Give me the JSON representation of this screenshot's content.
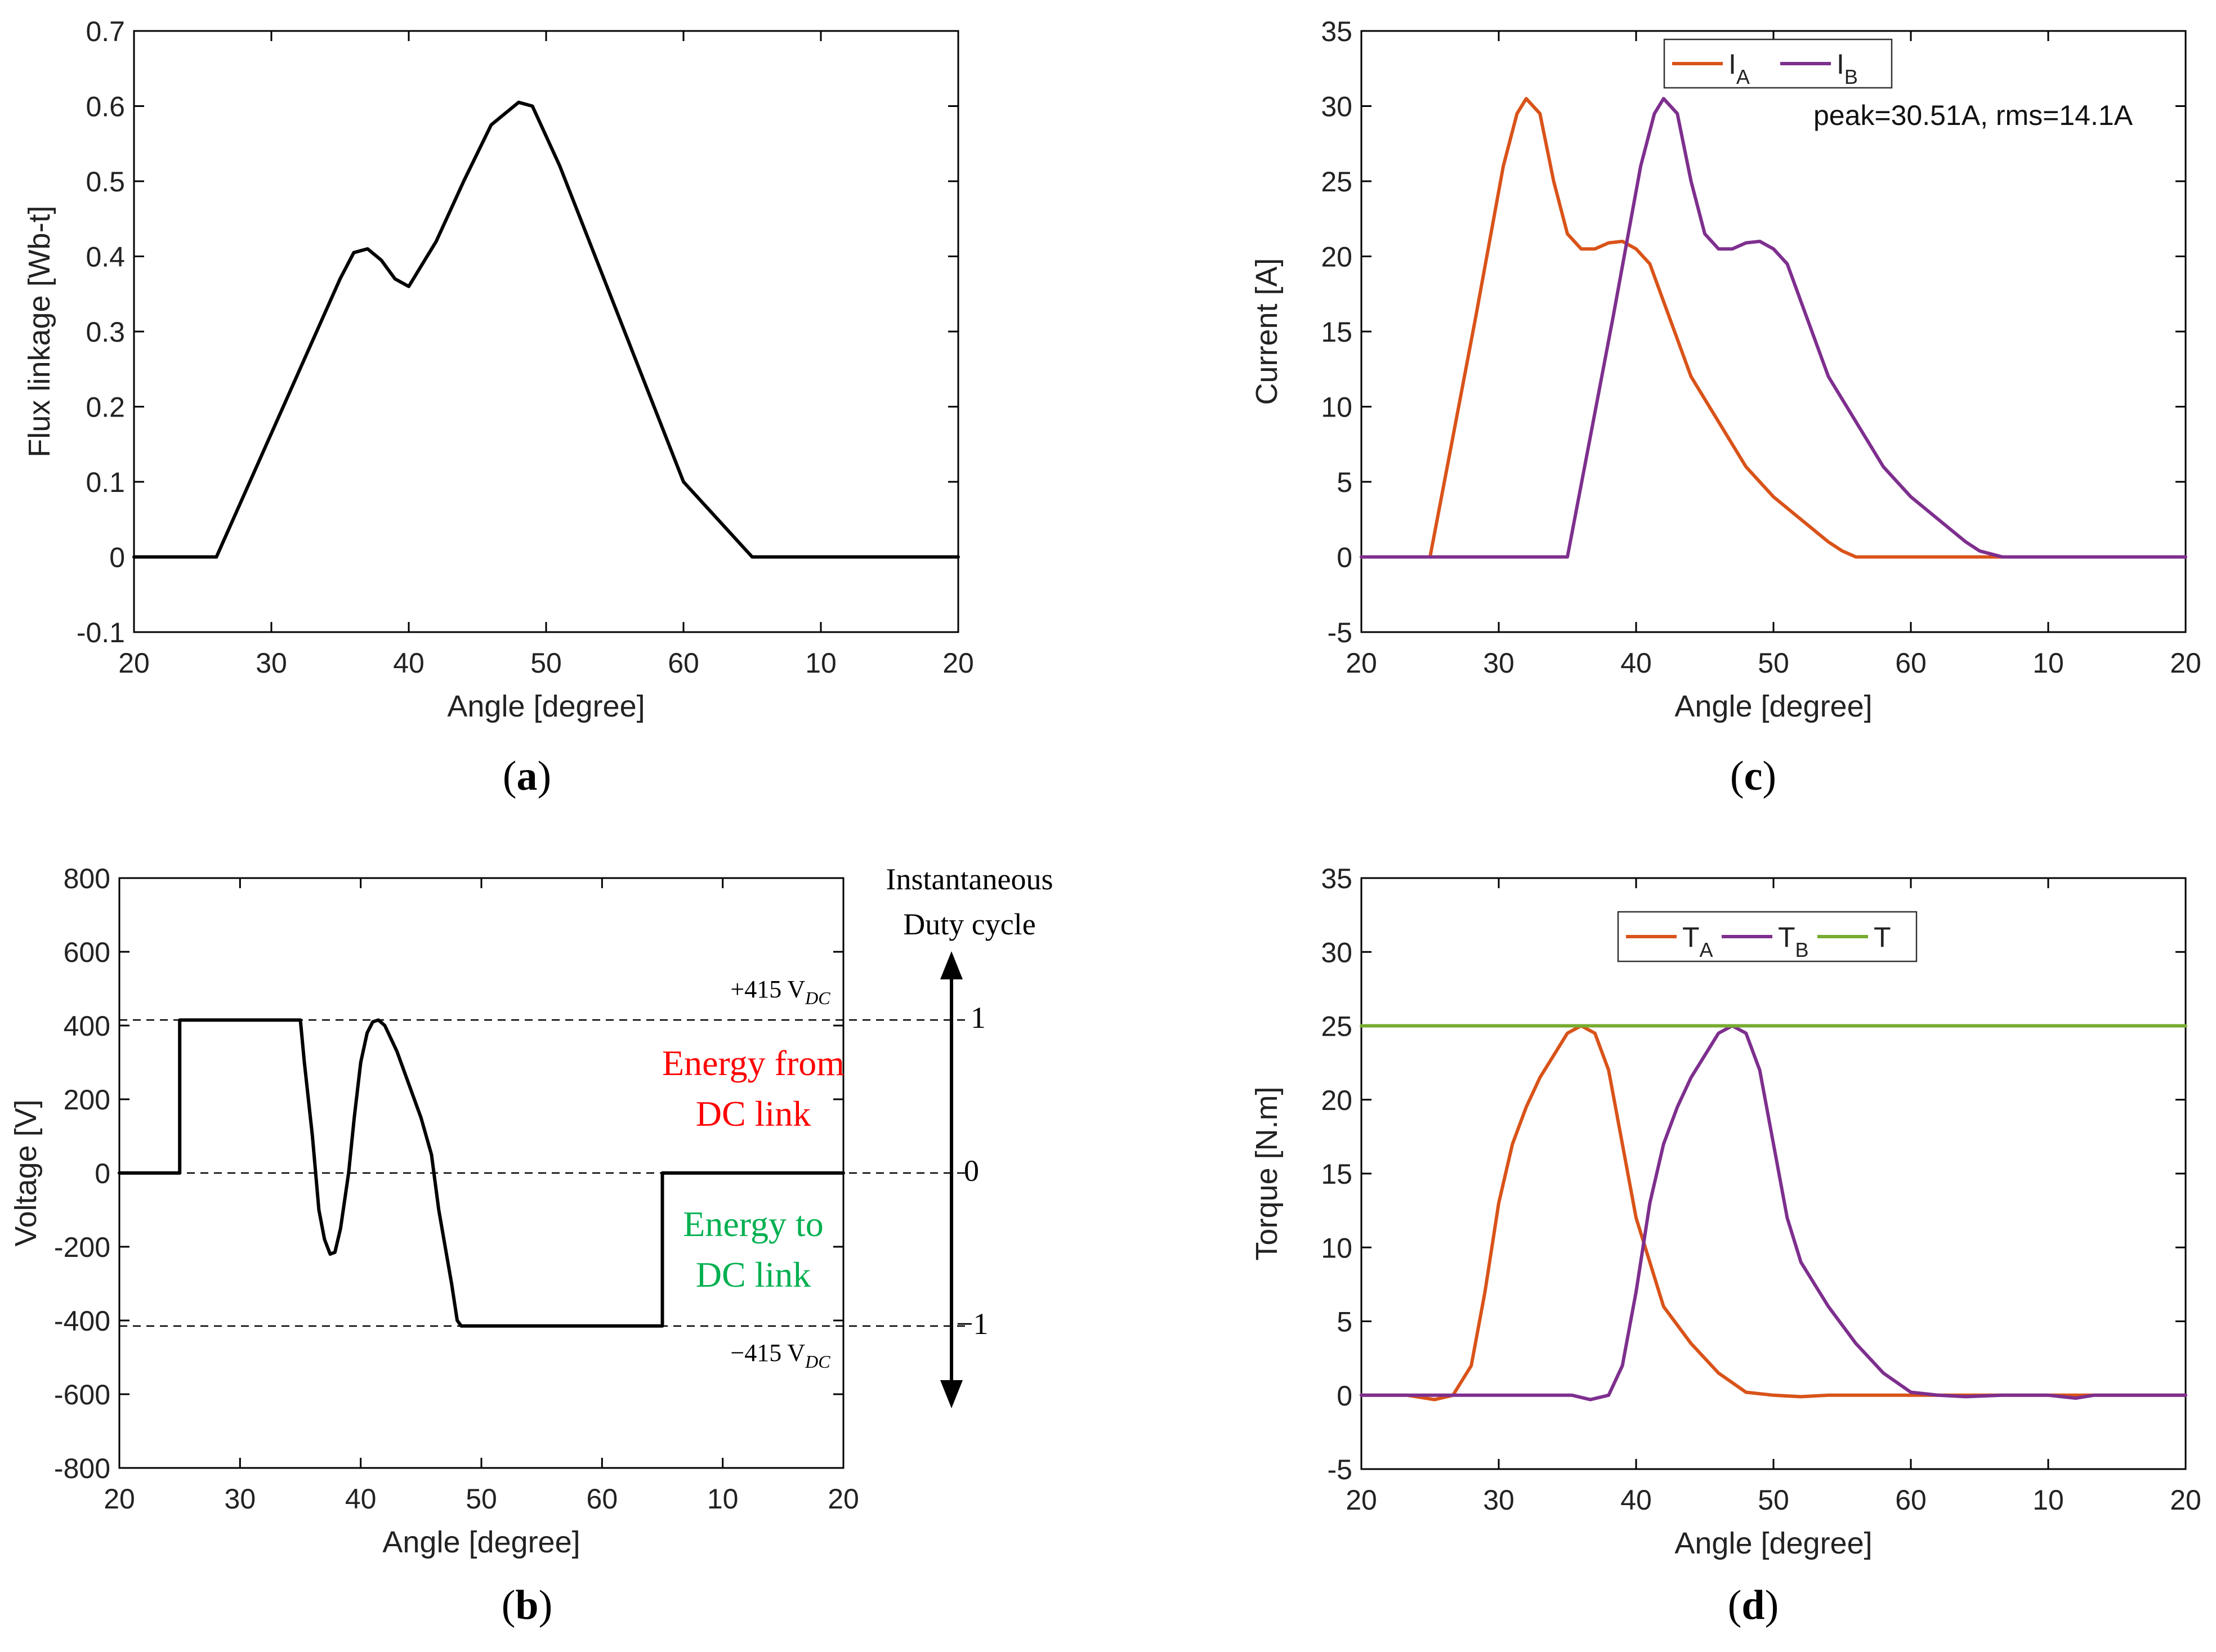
{
  "colors": {
    "black": "#000000",
    "orange": "#D95319",
    "purple": "#7E2F8E",
    "green": "#77AC30",
    "red": "#FF0000",
    "energy_green": "#00B050"
  },
  "chart_data": [
    {
      "id": "a",
      "type": "line",
      "panel_label": "a",
      "xlabel": "Angle [degree]",
      "ylabel": "Flux linkage [Wb-t]",
      "xlim": [
        0,
        90
      ],
      "x_tick_labels": [
        "20",
        "30",
        "40",
        "50",
        "60",
        "10",
        "20"
      ],
      "ylim": [
        -0.1,
        0.7
      ],
      "y_ticks": [
        -0.1,
        0,
        0.1,
        0.2,
        0.3,
        0.4,
        0.5,
        0.6,
        0.7
      ],
      "y_tick_labels": [
        "-0.1",
        "0",
        "0.1",
        "0.2",
        "0.3",
        "0.4",
        "0.5",
        "0.6",
        "0.7"
      ],
      "series": [
        {
          "name": "Flux linkage",
          "color": "#000000",
          "x": [
            0,
            7.5,
            9,
            22.5,
            24,
            25.5,
            27,
            28.5,
            30,
            33,
            36,
            39,
            42,
            43.5,
            45,
            46.5,
            60,
            67.5,
            90
          ],
          "y": [
            0,
            0,
            0,
            0.37,
            0.405,
            0.41,
            0.395,
            0.37,
            0.36,
            0.42,
            0.5,
            0.575,
            0.605,
            0.6,
            0.56,
            0.52,
            0.1,
            0,
            0
          ]
        }
      ]
    },
    {
      "id": "b",
      "type": "line",
      "panel_label": "b",
      "xlabel": "Angle [degree]",
      "ylabel": "Voltage [V]",
      "xlim": [
        0,
        90
      ],
      "x_tick_labels": [
        "20",
        "30",
        "40",
        "50",
        "60",
        "10",
        "20"
      ],
      "ylim": [
        -800,
        800
      ],
      "y_ticks": [
        -800,
        -600,
        -400,
        -200,
        0,
        200,
        400,
        600,
        800
      ],
      "y_tick_labels": [
        "-800",
        "-600",
        "-400",
        "-200",
        "0",
        "200",
        "400",
        "600",
        "800"
      ],
      "reference_lines": [
        415,
        0,
        -415
      ],
      "labels": {
        "plus_dc": "+415 V",
        "minus_dc": "−415 V",
        "dc_sub": "DC",
        "duty_title_1": "Instantaneous",
        "duty_title_2": "Duty cycle",
        "duty_1": "1",
        "duty_0": "0",
        "duty_m1": "−1",
        "energy_from_1": "Energy from",
        "energy_from_2": "DC link",
        "energy_to_1": "Energy to",
        "energy_to_2": "DC link"
      },
      "series": [
        {
          "name": "Voltage",
          "color": "#000000",
          "x": [
            0,
            7.5,
            7.5,
            22.5,
            23,
            24,
            24.8,
            25.5,
            26.2,
            26.8,
            27.5,
            28.5,
            29.2,
            30,
            30.8,
            31.5,
            32.2,
            33,
            34.5,
            36,
            37.5,
            38.8,
            39.7,
            40.5,
            41.3,
            42,
            42.5,
            43,
            43.5,
            45,
            45,
            67.5,
            67.5,
            90
          ],
          "y": [
            0,
            0,
            415,
            415,
            300,
            100,
            -100,
            -180,
            -220,
            -215,
            -150,
            0,
            150,
            300,
            380,
            410,
            415,
            400,
            330,
            240,
            150,
            50,
            -100,
            -200,
            -300,
            -400,
            -415,
            -415,
            -415,
            -415,
            -415,
            -415,
            0,
            0
          ]
        },
        {
          "name": "Zero line (before)",
          "color": "#000000",
          "x": [
            0,
            7.5
          ],
          "y": [
            0,
            0
          ]
        }
      ]
    },
    {
      "id": "c",
      "type": "line",
      "panel_label": "c",
      "xlabel": "Angle [degree]",
      "ylabel": "Current [A]",
      "xlim": [
        0,
        90
      ],
      "x_tick_labels": [
        "20",
        "30",
        "40",
        "50",
        "60",
        "10",
        "20"
      ],
      "ylim": [
        -5,
        35
      ],
      "y_ticks": [
        -5,
        0,
        5,
        10,
        15,
        20,
        25,
        30,
        35
      ],
      "y_tick_labels": [
        "-5",
        "0",
        "5",
        "10",
        "15",
        "20",
        "25",
        "30",
        "35"
      ],
      "legend": [
        {
          "label": "I",
          "sub": "A",
          "color": "#D95319"
        },
        {
          "label": "I",
          "sub": "B",
          "color": "#7E2F8E"
        }
      ],
      "annotation": "peak=30.51A, rms=14.1A",
      "series": [
        {
          "name": "IA",
          "color": "#D95319",
          "x": [
            0,
            7.5,
            10,
            12.5,
            14,
            15.5,
            17,
            18,
            19.5,
            21,
            22.5,
            24,
            25.5,
            27,
            28.5,
            30,
            31.5,
            33,
            36,
            39,
            42,
            45,
            48,
            51,
            52.5,
            54,
            56,
            60,
            67.5,
            90
          ],
          "y": [
            0,
            0,
            8,
            16,
            21,
            26,
            29.5,
            30.5,
            29.5,
            25,
            21.5,
            20.5,
            20.5,
            20.9,
            21,
            20.5,
            19.5,
            17,
            12,
            9,
            6,
            4,
            2.5,
            1,
            0.4,
            0,
            0,
            0,
            0,
            0
          ]
        },
        {
          "name": "IB",
          "color": "#7E2F8E",
          "x": [
            0,
            22.5,
            25,
            27.5,
            29,
            30.5,
            32,
            33,
            34.5,
            36,
            37.5,
            39,
            40.5,
            42,
            43.5,
            45,
            46.5,
            48,
            51,
            54,
            57,
            60,
            63,
            66,
            67.5,
            70,
            75,
            80,
            85,
            90
          ],
          "y": [
            0,
            0,
            8,
            16,
            21,
            26,
            29.5,
            30.5,
            29.5,
            25,
            21.5,
            20.5,
            20.5,
            20.9,
            21,
            20.5,
            19.5,
            17,
            12,
            9,
            6,
            4,
            2.5,
            1,
            0.4,
            0,
            0,
            0,
            0,
            0
          ]
        }
      ]
    },
    {
      "id": "d",
      "type": "line",
      "panel_label": "d",
      "xlabel": "Angle [degree]",
      "ylabel": "Torque [N.m]",
      "xlim": [
        0,
        90
      ],
      "x_tick_labels": [
        "20",
        "30",
        "40",
        "50",
        "60",
        "10",
        "20"
      ],
      "ylim": [
        -5,
        35
      ],
      "y_ticks": [
        -5,
        0,
        5,
        10,
        15,
        20,
        25,
        30,
        35
      ],
      "y_tick_labels": [
        "-5",
        "0",
        "5",
        "10",
        "15",
        "20",
        "25",
        "30",
        "35"
      ],
      "legend": [
        {
          "label": "T",
          "sub": "A",
          "color": "#D95319"
        },
        {
          "label": "T",
          "sub": "B",
          "color": "#7E2F8E"
        },
        {
          "label": "T",
          "sub": "",
          "color": "#77AC30"
        }
      ],
      "series": [
        {
          "name": "TA",
          "color": "#D95319",
          "x": [
            0,
            5,
            8,
            10,
            12,
            13.5,
            15,
            16.5,
            18,
            19.5,
            21,
            22.5,
            24,
            25.5,
            27,
            28.5,
            30,
            31.5,
            33,
            36,
            39,
            42,
            45,
            48,
            51,
            60,
            75,
            90
          ],
          "y": [
            0,
            0,
            -0.3,
            0,
            2,
            7,
            13,
            17,
            19.5,
            21.5,
            23,
            24.5,
            25,
            24.5,
            22,
            17,
            12,
            9,
            6,
            3.5,
            1.5,
            0.2,
            0,
            -0.1,
            0,
            0,
            0,
            0
          ]
        },
        {
          "name": "TB",
          "color": "#7E2F8E",
          "x": [
            0,
            20,
            23,
            25,
            27,
            28.5,
            30,
            31.5,
            33,
            34.5,
            36,
            37.5,
            39,
            40.5,
            42,
            43.5,
            45,
            46.5,
            48,
            51,
            54,
            57,
            60,
            63,
            66,
            70,
            75,
            78,
            80,
            82,
            85,
            90
          ],
          "y": [
            0,
            0,
            0,
            -0.3,
            0,
            2,
            7,
            13,
            17,
            19.5,
            21.5,
            23,
            24.5,
            25,
            24.5,
            22,
            17,
            12,
            9,
            6,
            3.5,
            1.5,
            0.2,
            0,
            -0.1,
            0,
            0,
            -0.2,
            0,
            0,
            0,
            0
          ]
        },
        {
          "name": "T",
          "color": "#77AC30",
          "x": [
            0,
            90
          ],
          "y": [
            25,
            25
          ]
        }
      ]
    }
  ]
}
